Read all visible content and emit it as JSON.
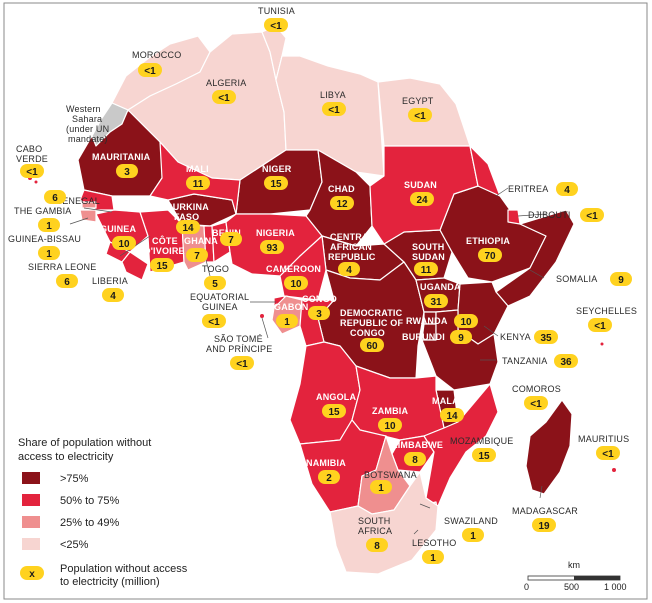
{
  "colors": {
    "gt75": "#8b1219",
    "p50_75": "#e3233d",
    "p25_49": "#ef8f8f",
    "lt25": "#f7d5d1",
    "ws": "#c9c9c9",
    "badge": "#ffd21f"
  },
  "legend": {
    "title_line1": "Share of population without",
    "title_line2": "access to electricity",
    "items": [
      ">75%",
      "50% to 75%",
      "25% to 49%",
      "<25%"
    ],
    "badge_symbol": "x",
    "badge_line1": "Population without access",
    "badge_line2": "to electricity (million)"
  },
  "scale": {
    "unit": "km",
    "ticks": [
      "0",
      "500",
      "1 000"
    ]
  },
  "countries": {
    "morocco": {
      "name": "MOROCCO",
      "value": "<1"
    },
    "tunisia": {
      "name": "TUNISIA",
      "value": "<1"
    },
    "algeria": {
      "name": "ALGERIA",
      "value": "<1"
    },
    "libya": {
      "name": "LIBYA",
      "value": "<1"
    },
    "egypt": {
      "name": "EGYPT",
      "value": "<1"
    },
    "western_sahara": {
      "line1": "Western",
      "line2": "Sahara",
      "line3": "(under UN",
      "line4": "mandate)"
    },
    "cabo_verde": {
      "line1": "CABO",
      "line2": "VERDE",
      "value": "<1"
    },
    "mauritania": {
      "name": "MAURITANIA",
      "value": "3"
    },
    "mali": {
      "name": "MALI",
      "value": "11"
    },
    "niger": {
      "name": "NIGER",
      "value": "15"
    },
    "chad": {
      "name": "CHAD",
      "value": "12"
    },
    "sudan": {
      "name": "SUDAN",
      "value": "24"
    },
    "eritrea": {
      "name": "ERITREA",
      "value": "4"
    },
    "djibouti": {
      "name": "DJIBOUTI",
      "value": "<1"
    },
    "senegal": {
      "name": "SENEGAL",
      "value": "6"
    },
    "the_gambia": {
      "name": "THE GAMBIA",
      "value": "1"
    },
    "guinea_bissau": {
      "name": "GUINEA-BISSAU",
      "value": "1"
    },
    "guinea": {
      "name": "GUINEA",
      "value": "10"
    },
    "burkina_faso": {
      "line1": "BURKINA",
      "line2": "FASO",
      "value": "14"
    },
    "benin": {
      "name": "BENIN",
      "value": "7"
    },
    "nigeria": {
      "name": "NIGERIA",
      "value": "93"
    },
    "cote_divoire": {
      "line1": "CÔTE",
      "line2": "D'IVOIRE",
      "value": "15"
    },
    "ghana": {
      "name": "GHANA",
      "value": "7"
    },
    "sierra_leone": {
      "name": "SIERRA LEONE",
      "value": "6"
    },
    "liberia": {
      "name": "LIBERIA",
      "value": "4"
    },
    "togo": {
      "name": "TOGO",
      "value": "5"
    },
    "central_african_republic": {
      "line1": "CENTRAL",
      "line2": "AFRICAN",
      "line3": "REPUBLIC",
      "value": "4"
    },
    "south_sudan": {
      "line1": "SOUTH",
      "line2": "SUDAN",
      "value": "11"
    },
    "ethiopia": {
      "name": "ETHIOPIA",
      "value": "70"
    },
    "somalia": {
      "name": "SOMALIA",
      "value": "9"
    },
    "cameroon": {
      "name": "CAMEROON",
      "value": "10"
    },
    "equatorial_guinea": {
      "line1": "EQUATORIAL",
      "line2": "GUINEA",
      "value": "<1"
    },
    "gabon": {
      "name": "GABON",
      "value": "1"
    },
    "congo": {
      "name": "CONGO",
      "value": "3"
    },
    "drc": {
      "line1": "DEMOCRATIC",
      "line2": "REPUBLIC OF",
      "line3": "CONGO",
      "value": "60"
    },
    "uganda": {
      "name": "UGANDA",
      "value": "31"
    },
    "rwanda": {
      "name": "RWANDA",
      "value": "10"
    },
    "burundi": {
      "name": "BURUNDI",
      "value": "9"
    },
    "kenya": {
      "name": "KENYA",
      "value": "35"
    },
    "seychelles": {
      "name": "SEYCHELLES",
      "value": "<1"
    },
    "sao_tome": {
      "line1": "SÃO TOMÉ",
      "line2": "AND PRÍNCIPE",
      "value": "<1"
    },
    "tanzania": {
      "name": "TANZANIA",
      "value": "36"
    },
    "comoros": {
      "name": "COMOROS",
      "value": "<1"
    },
    "angola": {
      "name": "ANGOLA",
      "value": "15"
    },
    "zambia": {
      "name": "ZAMBIA",
      "value": "10"
    },
    "malawi": {
      "name": "MALAWI",
      "value": "14"
    },
    "mauritius": {
      "name": "MAURITIUS",
      "value": "<1"
    },
    "zimbabwe": {
      "name": "ZIMBABWE",
      "value": "8"
    },
    "mozambique": {
      "name": "MOZAMBIQUE",
      "value": "15"
    },
    "namibia": {
      "name": "NAMIBIA",
      "value": "2"
    },
    "botswana": {
      "name": "BOTSWANA",
      "value": "1"
    },
    "madagascar": {
      "name": "MADAGASCAR",
      "value": "19"
    },
    "swaziland": {
      "name": "SWAZILAND",
      "value": "1"
    },
    "south_africa": {
      "line1": "SOUTH",
      "line2": "AFRICA",
      "value": "8"
    },
    "lesotho": {
      "name": "LESOTHO",
      "value": "1"
    }
  }
}
